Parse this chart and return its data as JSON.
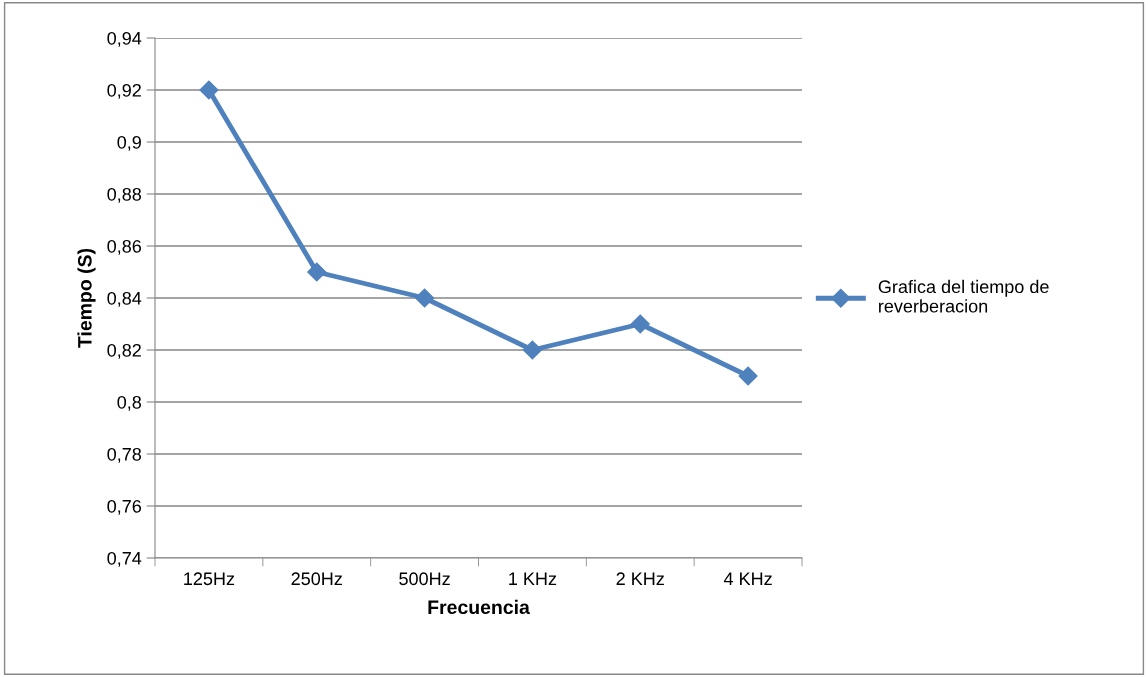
{
  "chart_data": {
    "type": "line",
    "xlabel": "Frecuencia",
    "ylabel": "Tiempo (S)",
    "categories": [
      "125Hz",
      "250Hz",
      "500Hz",
      "1 KHz",
      "2 KHz",
      "4 KHz"
    ],
    "series": [
      {
        "name": "Grafica del tiempo de reverberacion",
        "color": "#4f81bd",
        "values": [
          0.92,
          0.85,
          0.84,
          0.82,
          0.83,
          0.81
        ]
      }
    ],
    "ylim": [
      0.74,
      0.94
    ],
    "yticks": [
      {
        "value": 0.74,
        "label": "0,74"
      },
      {
        "value": 0.76,
        "label": "0,76"
      },
      {
        "value": 0.78,
        "label": "0,78"
      },
      {
        "value": 0.8,
        "label": "0,8"
      },
      {
        "value": 0.82,
        "label": "0,82"
      },
      {
        "value": 0.84,
        "label": "0,84"
      },
      {
        "value": 0.86,
        "label": "0,86"
      },
      {
        "value": 0.88,
        "label": "0,88"
      },
      {
        "value": 0.9,
        "label": "0,9"
      },
      {
        "value": 0.92,
        "label": "0,92"
      },
      {
        "value": 0.94,
        "label": "0,94"
      }
    ],
    "grid": "y",
    "legend": "right",
    "marker": "diamond",
    "line_style": "solid"
  }
}
